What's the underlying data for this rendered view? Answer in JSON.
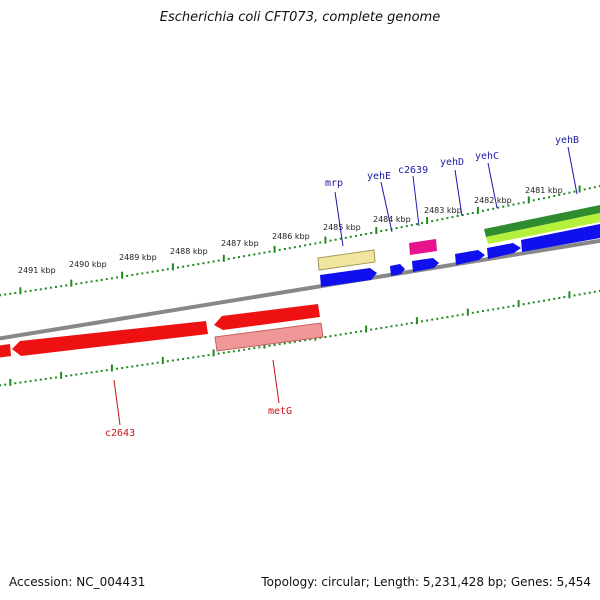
{
  "title": "Escherichia coli CFT073, complete genome",
  "footer": {
    "accession": "Accession: NC_004431",
    "summary": "Topology: circular; Length: 5,231,428 bp; Genes: 5,454"
  },
  "map_data": {
    "kbp_labels": [
      "2491 kbp",
      "2490 kbp",
      "2489 kbp",
      "2488 kbp",
      "2487 kbp",
      "2486 kbp",
      "2485 kbp",
      "2484 kbp",
      "2483 kbp",
      "2482 kbp",
      "2481 kbp"
    ],
    "colors": {
      "forward_cds": "#1010ee",
      "reverse_cds": "#ee1111",
      "tick": "#1f8a1f",
      "backbone": "#888888",
      "forward_label": "#1a1aa8",
      "reverse_label": "#cc1111"
    },
    "genes_upper": [
      {
        "name": "mrp",
        "strand": "+"
      },
      {
        "name": "yehE",
        "strand": "+"
      },
      {
        "name": "c2639",
        "strand": "+"
      },
      {
        "name": "yehD",
        "strand": "+"
      },
      {
        "name": "yehC",
        "strand": "+"
      },
      {
        "name": "yehB",
        "strand": "+"
      }
    ],
    "genes_lower": [
      {
        "name": "metG",
        "strand": "-"
      },
      {
        "name": "c2643",
        "strand": "-"
      }
    ]
  }
}
